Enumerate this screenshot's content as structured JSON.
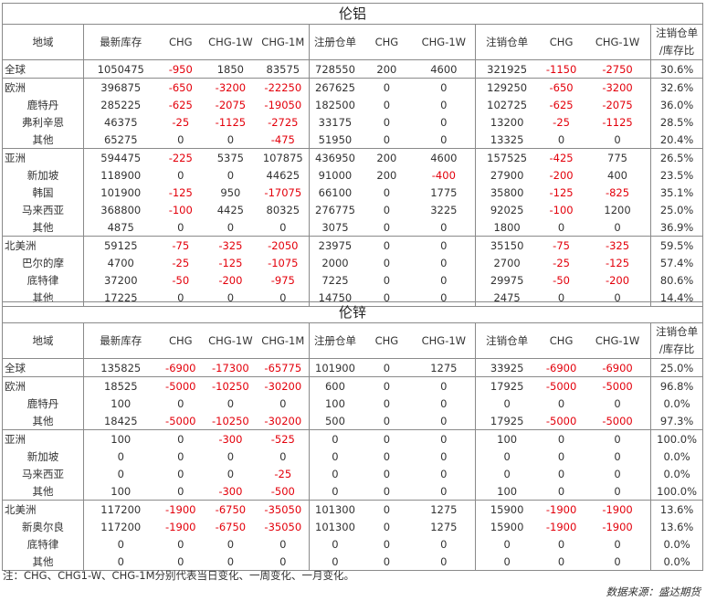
{
  "columns": [
    "地域",
    "最新库存",
    "CHG",
    "CHG-1W",
    "CHG-1M",
    "注册仓单",
    "CHG",
    "CHG-1W",
    "注销仓单",
    "CHG",
    "CHG-1W",
    "注销仓单/库存比"
  ],
  "tables": [
    {
      "title": "伦铝",
      "groups": [
        {
          "rows": [
            [
              "全球",
              "1050475",
              "-950",
              "1850",
              "83575",
              "728550",
              "200",
              "4600",
              "321925",
              "-1150",
              "-2750",
              "30.6%"
            ]
          ]
        },
        {
          "rows": [
            [
              "欧洲",
              "396875",
              "-650",
              "-3200",
              "-22250",
              "267625",
              "0",
              "0",
              "129250",
              "-650",
              "-3200",
              "32.6%"
            ],
            [
              "鹿特丹",
              "285225",
              "-625",
              "-2075",
              "-19050",
              "182500",
              "0",
              "0",
              "102725",
              "-625",
              "-2075",
              "36.0%"
            ],
            [
              "弗利辛恩",
              "46375",
              "-25",
              "-1125",
              "-2725",
              "33175",
              "0",
              "0",
              "13200",
              "-25",
              "-1125",
              "28.5%"
            ],
            [
              "其他",
              "65275",
              "0",
              "0",
              "-475",
              "51950",
              "0",
              "0",
              "13325",
              "0",
              "0",
              "20.4%"
            ]
          ]
        },
        {
          "rows": [
            [
              "亚洲",
              "594475",
              "-225",
              "5375",
              "107875",
              "436950",
              "200",
              "4600",
              "157525",
              "-425",
              "775",
              "26.5%"
            ],
            [
              "新加坡",
              "118900",
              "0",
              "0",
              "44625",
              "91000",
              "200",
              "-400",
              "27900",
              "-200",
              "400",
              "23.5%"
            ],
            [
              "韩国",
              "101900",
              "-125",
              "950",
              "-17075",
              "66100",
              "0",
              "1775",
              "35800",
              "-125",
              "-825",
              "35.1%"
            ],
            [
              "马来西亚",
              "368800",
              "-100",
              "4425",
              "80325",
              "276775",
              "0",
              "3225",
              "92025",
              "-100",
              "1200",
              "25.0%"
            ],
            [
              "其他",
              "4875",
              "0",
              "0",
              "0",
              "3075",
              "0",
              "0",
              "1800",
              "0",
              "0",
              "36.9%"
            ]
          ]
        },
        {
          "rows": [
            [
              "北美洲",
              "59125",
              "-75",
              "-325",
              "-2050",
              "23975",
              "0",
              "0",
              "35150",
              "-75",
              "-325",
              "59.5%"
            ],
            [
              "巴尔的摩",
              "4700",
              "-25",
              "-125",
              "-1075",
              "2000",
              "0",
              "0",
              "2700",
              "-25",
              "-125",
              "57.4%"
            ],
            [
              "底特律",
              "37200",
              "-50",
              "-200",
              "-975",
              "7225",
              "0",
              "0",
              "29975",
              "-50",
              "-200",
              "80.6%"
            ],
            [
              "其他",
              "17225",
              "0",
              "0",
              "0",
              "14750",
              "0",
              "0",
              "2475",
              "0",
              "0",
              "14.4%"
            ]
          ]
        }
      ]
    },
    {
      "title": "伦锌",
      "groups": [
        {
          "rows": [
            [
              "全球",
              "135825",
              "-6900",
              "-17300",
              "-65775",
              "101900",
              "0",
              "1275",
              "33925",
              "-6900",
              "-6900",
              "25.0%"
            ]
          ]
        },
        {
          "rows": [
            [
              "欧洲",
              "18525",
              "-5000",
              "-10250",
              "-30200",
              "600",
              "0",
              "0",
              "17925",
              "-5000",
              "-5000",
              "96.8%"
            ],
            [
              "鹿特丹",
              "100",
              "0",
              "0",
              "0",
              "100",
              "0",
              "0",
              "0",
              "0",
              "0",
              "0.0%"
            ],
            [
              "其他",
              "18425",
              "-5000",
              "-10250",
              "-30200",
              "500",
              "0",
              "0",
              "17925",
              "-5000",
              "-5000",
              "97.3%"
            ]
          ]
        },
        {
          "rows": [
            [
              "亚洲",
              "100",
              "0",
              "-300",
              "-525",
              "0",
              "0",
              "0",
              "100",
              "0",
              "0",
              "100.0%"
            ],
            [
              "新加坡",
              "0",
              "0",
              "0",
              "0",
              "0",
              "0",
              "0",
              "0",
              "0",
              "0",
              "0.0%"
            ],
            [
              "马来西亚",
              "0",
              "0",
              "0",
              "-25",
              "0",
              "0",
              "0",
              "0",
              "0",
              "0",
              "0.0%"
            ],
            [
              "其他",
              "100",
              "0",
              "-300",
              "-500",
              "0",
              "0",
              "0",
              "100",
              "0",
              "0",
              "100.0%"
            ]
          ]
        },
        {
          "rows": [
            [
              "北美洲",
              "117200",
              "-1900",
              "-6750",
              "-35050",
              "101300",
              "0",
              "1275",
              "15900",
              "-1900",
              "-1900",
              "13.6%"
            ],
            [
              "新奥尔良",
              "117200",
              "-1900",
              "-6750",
              "-35050",
              "101300",
              "0",
              "1275",
              "15900",
              "-1900",
              "-1900",
              "13.6%"
            ],
            [
              "底特律",
              "0",
              "0",
              "0",
              "0",
              "0",
              "0",
              "0",
              "0",
              "0",
              "0",
              "0.0%"
            ],
            [
              "其他",
              "0",
              "0",
              "0",
              "0",
              "0",
              "0",
              "0",
              "0",
              "0",
              "0",
              "0.0%"
            ]
          ]
        }
      ]
    }
  ],
  "footnote": "注：CHG、CHG1-W、CHG-1M分别代表当日变化、一周变化、一月变化。",
  "source": "数据来源：盛达期货"
}
